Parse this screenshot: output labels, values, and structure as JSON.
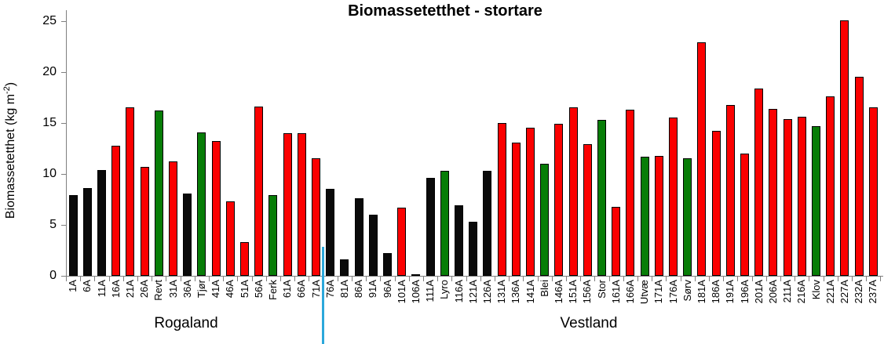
{
  "title": "Biomassetetthet - stortare",
  "y_axis": {
    "label_prefix": "Biomassetetthet  (kg m",
    "label_sup": "-2",
    "label_suffix": ")"
  },
  "regions": [
    {
      "label": "Rogaland"
    },
    {
      "label": "Vestland"
    }
  ],
  "colors": {
    "red": "#fb0000",
    "green": "#077d07",
    "black": "#0a0a0a",
    "bar_border": "#000000",
    "axis": "#7f7f7f",
    "divider_blue": "#2ba8db"
  },
  "chart_data": {
    "type": "bar",
    "title": "Biomassetetthet - stortare",
    "ylabel": "Biomassetetthet (kg m-2)",
    "xlabel": "",
    "ylim": [
      0,
      25
    ],
    "yticks": [
      0,
      5,
      10,
      15,
      20,
      25
    ],
    "grid": false,
    "legend": false,
    "categories": [
      "1A",
      "6A",
      "11A",
      "16A",
      "21A",
      "26A",
      "Revt",
      "31A",
      "36A",
      "Tjør",
      "41A",
      "46A",
      "51A",
      "56A",
      "Ferk",
      "61A",
      "66A",
      "71A",
      "76A",
      "81A",
      "86A",
      "91A",
      "96A",
      "101A",
      "106A",
      "111A",
      "Lyro",
      "116A",
      "121A",
      "126A",
      "131A",
      "136A",
      "141A",
      "Blei",
      "146A",
      "151A",
      "156A",
      "Stor",
      "161A",
      "166A",
      "Utvæ",
      "171A",
      "176A",
      "Sørv",
      "181A",
      "186A",
      "191A",
      "196A",
      "201A",
      "206A",
      "211A",
      "216A",
      "Klov",
      "221A",
      "227A",
      "232A",
      "237A"
    ],
    "values": [
      7.9,
      8.6,
      10.4,
      12.8,
      16.5,
      10.7,
      16.2,
      11.2,
      8.1,
      14.1,
      13.2,
      7.3,
      3.3,
      16.6,
      7.9,
      14.0,
      14.0,
      11.5,
      8.5,
      1.6,
      7.6,
      6.0,
      2.2,
      6.7,
      0.15,
      9.6,
      10.3,
      6.9,
      5.3,
      10.3,
      15.0,
      13.1,
      14.5,
      11.0,
      14.9,
      16.5,
      12.9,
      15.3,
      6.8,
      16.3,
      11.7,
      11.8,
      15.5,
      11.5,
      22.9,
      14.2,
      16.8,
      12.0,
      18.4,
      16.4,
      15.4,
      15.6,
      14.7,
      17.6,
      25.1,
      19.5,
      16.5
    ],
    "bar_colors": [
      "black",
      "black",
      "black",
      "red",
      "red",
      "red",
      "green",
      "red",
      "black",
      "green",
      "red",
      "red",
      "red",
      "red",
      "green",
      "red",
      "red",
      "red",
      "black",
      "black",
      "black",
      "black",
      "black",
      "red",
      "black",
      "black",
      "green",
      "black",
      "black",
      "black",
      "red",
      "red",
      "red",
      "green",
      "red",
      "red",
      "red",
      "green",
      "red",
      "red",
      "green",
      "red",
      "red",
      "green",
      "red",
      "red",
      "red",
      "red",
      "red",
      "red",
      "red",
      "red",
      "green",
      "red",
      "red",
      "red",
      "red"
    ],
    "color_map": {
      "red": "#fb0000",
      "green": "#077d07",
      "black": "#0a0a0a"
    },
    "region_groups": [
      {
        "label": "Rogaland",
        "start_index": 0,
        "end_index": 17
      },
      {
        "label": "Vestland",
        "start_index": 18,
        "end_index": 56
      }
    ],
    "divider": {
      "after_index": 17,
      "color": "#2ba8db"
    }
  }
}
